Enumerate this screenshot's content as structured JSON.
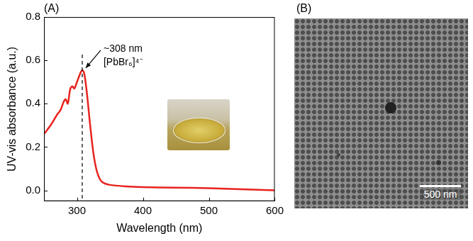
{
  "chart_data": {
    "type": "line",
    "panel_label": "(A)",
    "x_label": "Wavelength (nm)",
    "y_label": "UV-vis absorbance (a.u.)",
    "x": [
      250,
      260,
      270,
      275,
      280,
      283,
      286,
      290,
      293,
      296,
      300,
      305,
      308,
      311,
      315,
      320,
      325,
      330,
      335,
      340,
      350,
      375,
      400,
      450,
      500,
      550,
      600
    ],
    "values": [
      0.26,
      0.3,
      0.35,
      0.37,
      0.41,
      0.42,
      0.4,
      0.47,
      0.48,
      0.47,
      0.5,
      0.54,
      0.555,
      0.54,
      0.45,
      0.3,
      0.17,
      0.09,
      0.05,
      0.035,
      0.025,
      0.018,
      0.015,
      0.012,
      0.01,
      0.005,
      0.0
    ],
    "color": "#e8231f",
    "xlim": [
      250,
      600
    ],
    "xticks": [
      300,
      400,
      500,
      600
    ],
    "ylim": [
      -0.05,
      0.8
    ],
    "yticks": [
      {
        "value": 0,
        "label": "0.0"
      },
      {
        "value": 0.2,
        "label": "0.2"
      },
      {
        "value": 0.4,
        "label": "0.4"
      },
      {
        "value": 0.6,
        "label": "0.6"
      },
      {
        "value": 0.8,
        "label": "0.8"
      }
    ],
    "grid": false,
    "legend": "none",
    "annotation": {
      "lines": [
        "~308 nm",
        "[PbBr₆]⁴⁻"
      ],
      "x": 308,
      "y": 0.555,
      "line_style": "dashed"
    }
  },
  "image_panel": {
    "label": "(B)",
    "scale_bar": "500 nm"
  }
}
